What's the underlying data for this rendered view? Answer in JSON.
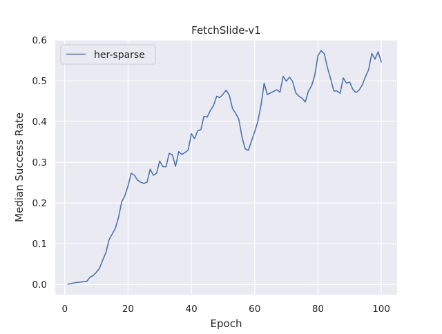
{
  "chart_data": {
    "type": "line",
    "title": "FetchSlide-v1",
    "xlabel": "Epoch",
    "ylabel": "Median Success Rate",
    "xlim": [
      -3,
      105
    ],
    "ylim": [
      -0.025,
      0.6
    ],
    "xticks": [
      0,
      20,
      40,
      60,
      80,
      100
    ],
    "yticks": [
      0.0,
      0.1,
      0.2,
      0.3,
      0.4,
      0.5,
      0.6
    ],
    "xtick_labels": [
      "0",
      "20",
      "40",
      "60",
      "80",
      "100"
    ],
    "ytick_labels": [
      "0.0",
      "0.1",
      "0.2",
      "0.3",
      "0.4",
      "0.5",
      "0.6"
    ],
    "grid": true,
    "legend_position": "upper left",
    "background_color": "#eaeaf2",
    "grid_color": "#ffffff",
    "series": [
      {
        "name": "her-sparse",
        "color": "#4c72b0",
        "x": [
          1,
          2,
          3,
          4,
          5,
          6,
          7,
          8,
          9,
          10,
          11,
          12,
          13,
          14,
          15,
          16,
          17,
          18,
          19,
          20,
          21,
          22,
          23,
          24,
          25,
          26,
          27,
          28,
          29,
          30,
          31,
          32,
          33,
          34,
          35,
          36,
          37,
          38,
          39,
          40,
          41,
          42,
          43,
          44,
          45,
          46,
          47,
          48,
          49,
          50,
          51,
          52,
          53,
          54,
          55,
          56,
          57,
          58,
          59,
          60,
          61,
          62,
          63,
          64,
          65,
          66,
          67,
          68,
          69,
          70,
          71,
          72,
          73,
          74,
          75,
          76,
          77,
          78,
          79,
          80,
          81,
          82,
          83,
          84,
          85,
          86,
          87,
          88,
          89,
          90,
          91,
          92,
          93,
          94,
          95,
          96,
          97,
          98,
          99,
          100
        ],
        "values": [
          0.001,
          0.002,
          0.004,
          0.005,
          0.006,
          0.007,
          0.008,
          0.018,
          0.022,
          0.03,
          0.04,
          0.06,
          0.078,
          0.11,
          0.124,
          0.138,
          0.165,
          0.203,
          0.218,
          0.242,
          0.273,
          0.268,
          0.256,
          0.251,
          0.248,
          0.251,
          0.283,
          0.268,
          0.273,
          0.303,
          0.289,
          0.289,
          0.322,
          0.318,
          0.29,
          0.326,
          0.319,
          0.324,
          0.33,
          0.37,
          0.358,
          0.377,
          0.38,
          0.413,
          0.411,
          0.427,
          0.439,
          0.462,
          0.459,
          0.467,
          0.477,
          0.464,
          0.432,
          0.42,
          0.405,
          0.362,
          0.333,
          0.329,
          0.352,
          0.375,
          0.4,
          0.44,
          0.494,
          0.466,
          0.47,
          0.474,
          0.478,
          0.472,
          0.511,
          0.499,
          0.509,
          0.498,
          0.47,
          0.462,
          0.457,
          0.448,
          0.475,
          0.488,
          0.514,
          0.562,
          0.574,
          0.566,
          0.532,
          0.505,
          0.475,
          0.475,
          0.469,
          0.507,
          0.494,
          0.497,
          0.479,
          0.471,
          0.477,
          0.49,
          0.51,
          0.527,
          0.567,
          0.553,
          0.571,
          0.546
        ]
      }
    ]
  }
}
